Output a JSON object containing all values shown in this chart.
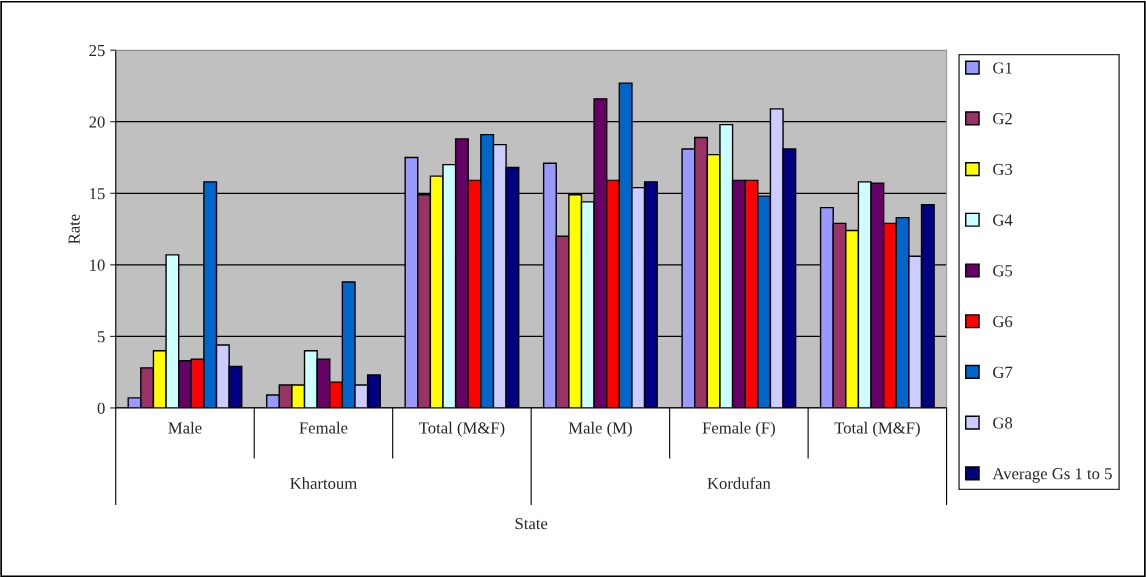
{
  "chart_data": {
    "type": "bar",
    "xlabel": "State",
    "ylabel": "Rate",
    "categories": [
      "Male",
      "Female",
      "Total (M&F)",
      "Male (M)",
      "Female (F)",
      "Total (M&F)"
    ],
    "annotations": [
      "Khartoum",
      "Kordufan"
    ],
    "series": [
      {
        "name": "G1",
        "color": "#9999ff",
        "values": [
          0.7,
          0.9,
          17.5,
          17.1,
          18.1,
          14.0
        ]
      },
      {
        "name": "G2",
        "color": "#993366",
        "values": [
          2.8,
          1.6,
          14.9,
          12.0,
          18.9,
          12.9
        ]
      },
      {
        "name": "G3",
        "color": "#ffff00",
        "values": [
          4.0,
          1.6,
          16.2,
          14.9,
          17.7,
          12.4
        ]
      },
      {
        "name": "G4",
        "color": "#ccffff",
        "values": [
          10.7,
          4.0,
          17.0,
          14.4,
          19.8,
          15.8
        ]
      },
      {
        "name": "G5",
        "color": "#660066",
        "values": [
          3.3,
          3.4,
          18.8,
          21.6,
          15.9,
          15.7
        ]
      },
      {
        "name": "G6",
        "color": "#ff0000",
        "values": [
          3.4,
          1.8,
          15.9,
          15.9,
          15.9,
          12.9
        ]
      },
      {
        "name": "G7",
        "color": "#0066cc",
        "values": [
          15.8,
          8.8,
          19.1,
          22.7,
          14.8,
          13.3
        ]
      },
      {
        "name": "G8",
        "color": "#ccccff",
        "values": [
          4.4,
          1.6,
          18.4,
          15.4,
          20.9,
          10.6
        ]
      },
      {
        "name": "Average Gs 1 to 5",
        "color": "#000080",
        "values": [
          2.9,
          2.3,
          16.8,
          15.8,
          18.1,
          14.2
        ]
      }
    ],
    "ylim": [
      0,
      25
    ],
    "yticks": [
      0,
      5,
      10,
      15,
      20,
      25
    ],
    "grid": "y",
    "legend": "right"
  }
}
